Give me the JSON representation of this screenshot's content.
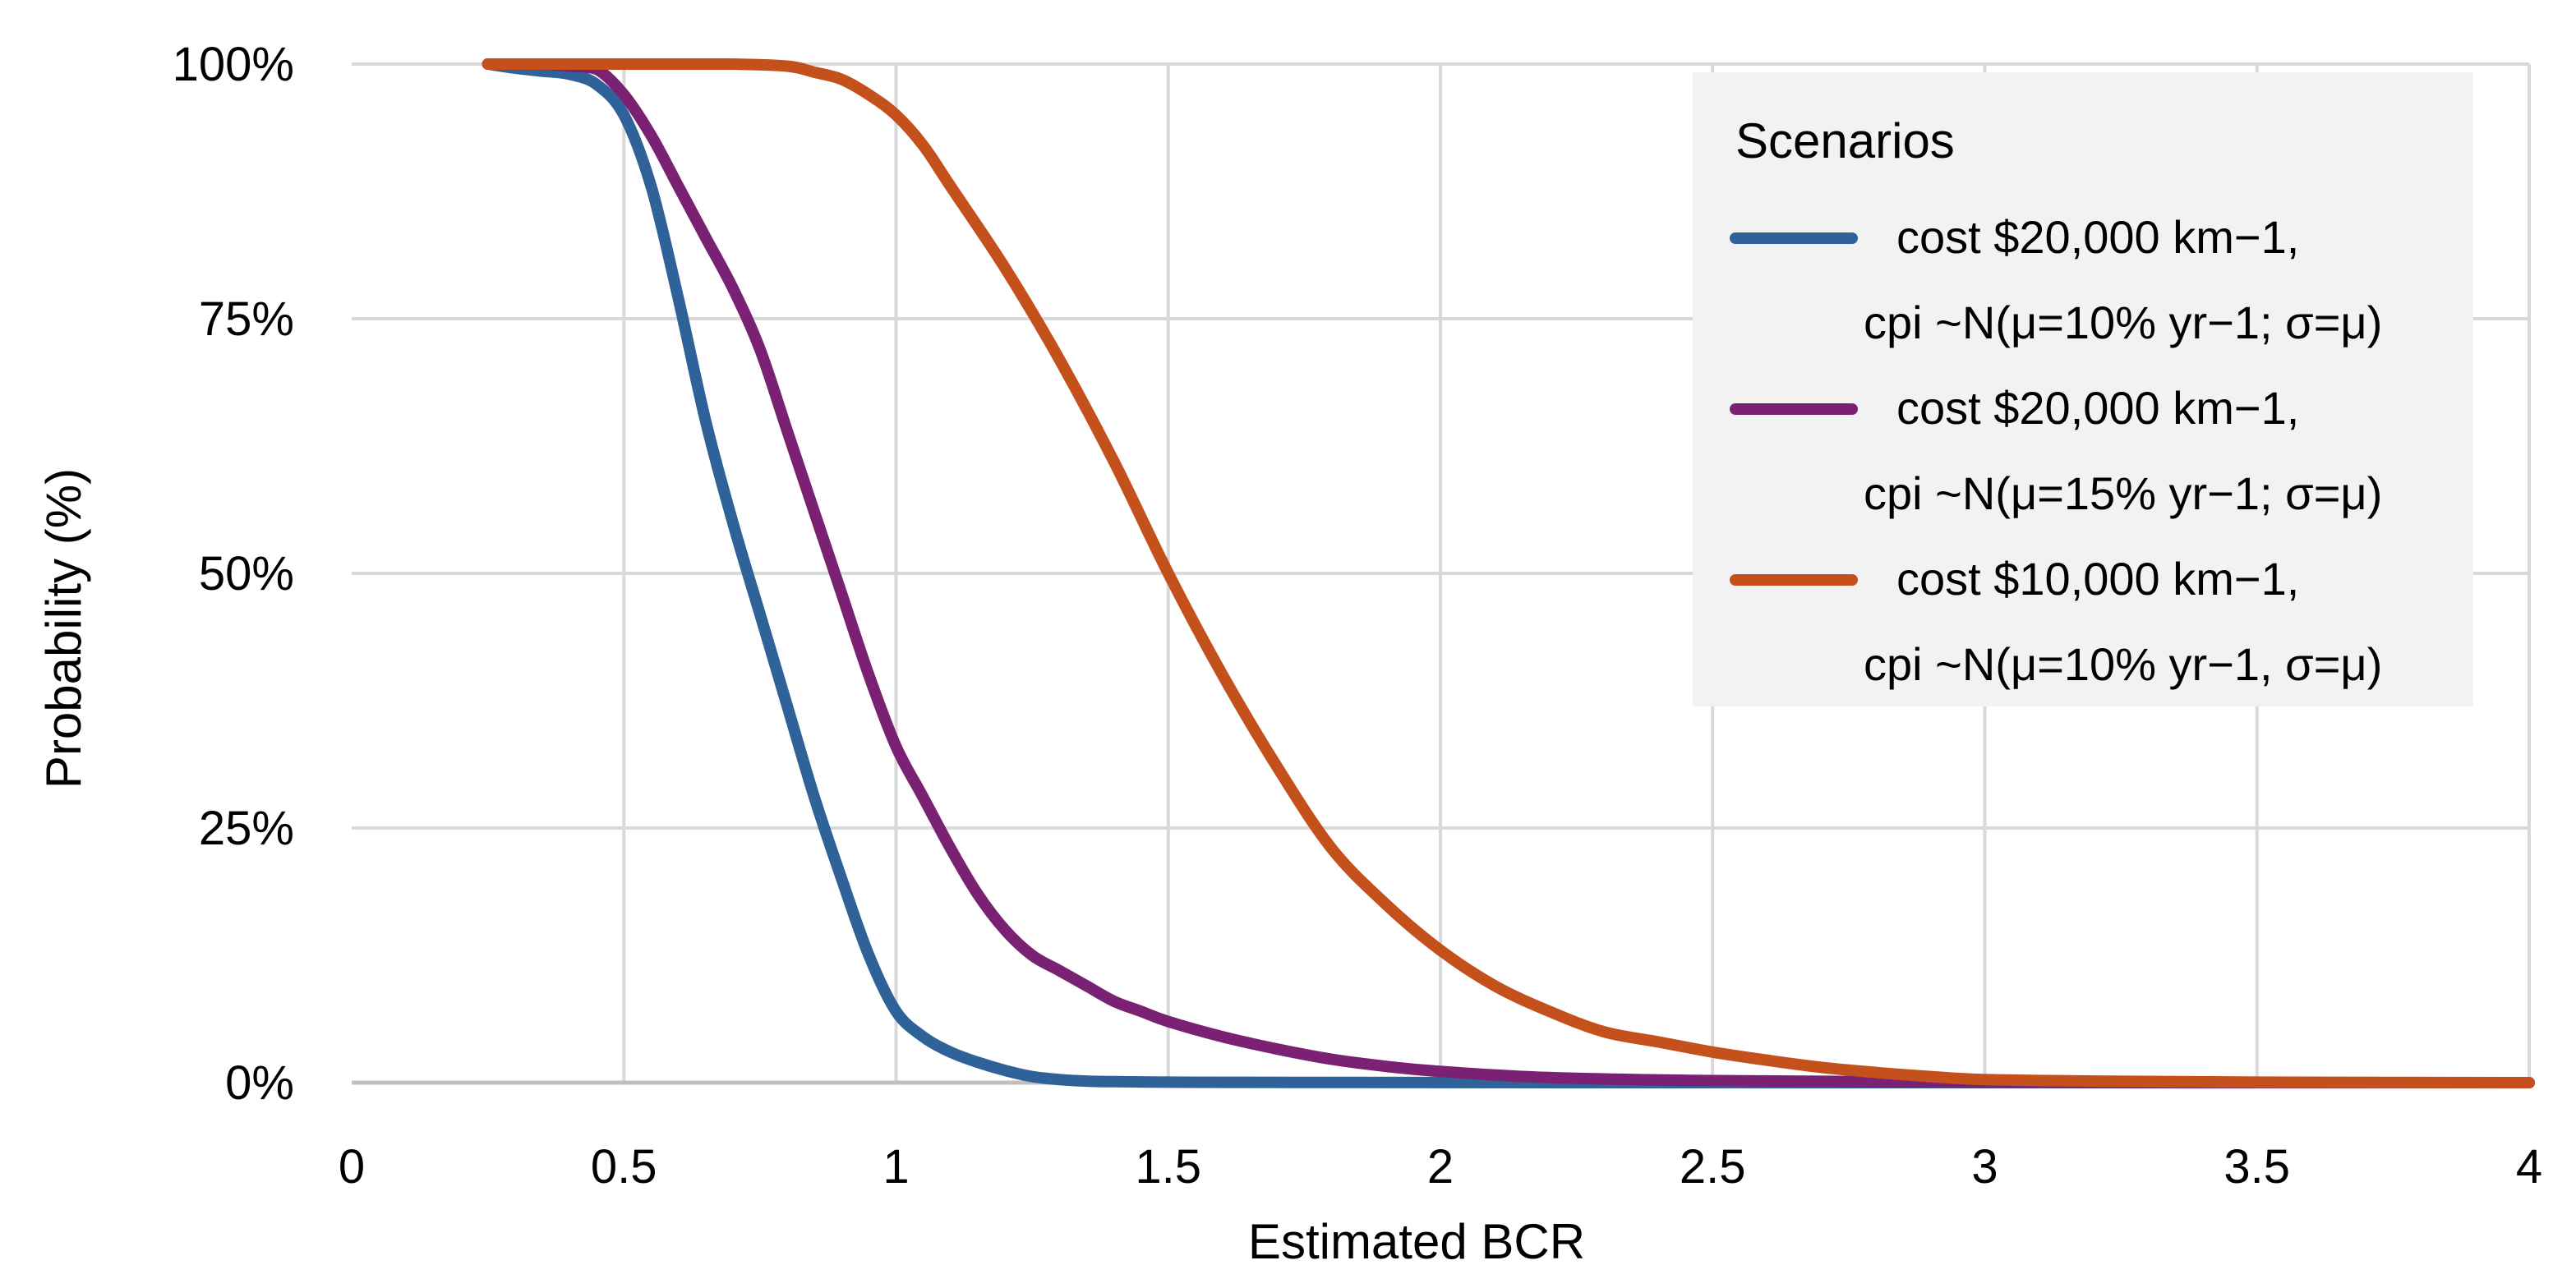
{
  "chart_data": {
    "type": "line",
    "title": "",
    "xlabel": "Estimated BCR",
    "ylabel": "Probability (%)",
    "xlim": [
      0,
      4
    ],
    "ylim": [
      0,
      100
    ],
    "x_ticks": [
      0,
      0.5,
      1,
      1.5,
      2,
      2.5,
      3,
      3.5,
      4
    ],
    "x_tick_labels": [
      "0",
      "0.5",
      "1",
      "1.5",
      "2",
      "2.5",
      "3",
      "3.5",
      "4"
    ],
    "y_ticks": [
      0,
      25,
      50,
      75,
      100
    ],
    "y_tick_labels": [
      "0%",
      "25%",
      "50%",
      "75%",
      "100%"
    ],
    "grid": true,
    "legend": {
      "title": "Scenarios",
      "position": "top-right"
    },
    "series": [
      {
        "name": "cost $20,000 km−1, cpi ~N(μ=10% yr−1; σ=μ)",
        "label_line1": "cost $20,000 km−1,",
        "label_line2": "cpi ~N(μ=10% yr−1; σ=μ)",
        "color": "#2e6299",
        "x": [
          0.25,
          0.3,
          0.35,
          0.4,
          0.45,
          0.5,
          0.55,
          0.6,
          0.65,
          0.7,
          0.75,
          0.8,
          0.85,
          0.9,
          0.95,
          1.0,
          1.05,
          1.1,
          1.15,
          1.2,
          1.25,
          1.3,
          1.35,
          1.4,
          1.5,
          1.6,
          1.8,
          2.0,
          2.5,
          3.0,
          3.5,
          4.0
        ],
        "values": [
          100,
          99.6,
          99.3,
          99,
          98,
          95,
          88,
          77,
          65,
          55,
          46,
          37,
          28,
          20,
          12.5,
          7,
          4.5,
          3,
          2,
          1.2,
          0.6,
          0.3,
          0.15,
          0.1,
          0.05,
          0.03,
          0.02,
          0.01,
          0,
          0,
          0,
          0
        ]
      },
      {
        "name": "cost $20,000 km−1, cpi ~N(μ=15% yr−1; σ=μ)",
        "label_line1": "cost $20,000 km−1,",
        "label_line2": "cpi ~N(μ=15% yr−1; σ=μ)",
        "color": "#7a2173",
        "x": [
          0.25,
          0.3,
          0.35,
          0.4,
          0.45,
          0.5,
          0.55,
          0.6,
          0.65,
          0.7,
          0.75,
          0.8,
          0.85,
          0.9,
          0.95,
          1.0,
          1.05,
          1.1,
          1.15,
          1.2,
          1.25,
          1.3,
          1.35,
          1.4,
          1.45,
          1.5,
          1.6,
          1.7,
          1.8,
          1.9,
          2.0,
          2.2,
          2.5,
          3.0,
          3.5,
          4.0
        ],
        "values": [
          100,
          100,
          100,
          99.8,
          99.5,
          97,
          93,
          88,
          83,
          78,
          72,
          64,
          56,
          48,
          40,
          33,
          28,
          23,
          18.5,
          15,
          12.5,
          11,
          9.5,
          8,
          7,
          6,
          4.5,
          3.3,
          2.3,
          1.6,
          1.1,
          0.5,
          0.2,
          0.05,
          0,
          0
        ]
      },
      {
        "name": "cost $10,000 km−1, cpi ~N(μ=10% yr−1, σ=μ)",
        "label_line1": "cost $10,000 km−1,",
        "label_line2": "cpi ~N(μ=10%  yr−1, σ=μ)",
        "color": "#c4501c",
        "x": [
          0.25,
          0.4,
          0.5,
          0.6,
          0.7,
          0.8,
          0.85,
          0.9,
          0.95,
          1.0,
          1.05,
          1.1,
          1.2,
          1.3,
          1.4,
          1.5,
          1.6,
          1.7,
          1.8,
          1.9,
          2.0,
          2.1,
          2.2,
          2.3,
          2.4,
          2.5,
          2.6,
          2.7,
          2.8,
          2.9,
          3.0,
          3.2,
          3.5,
          4.0
        ],
        "values": [
          100,
          100,
          100,
          100,
          100,
          99.8,
          99.2,
          98.5,
          97,
          95,
          92,
          88,
          80,
          71,
          61,
          50,
          40,
          31,
          23,
          17.5,
          13,
          9.5,
          7,
          5,
          4,
          3,
          2.2,
          1.5,
          1,
          0.6,
          0.3,
          0.15,
          0.05,
          0
        ]
      }
    ]
  }
}
